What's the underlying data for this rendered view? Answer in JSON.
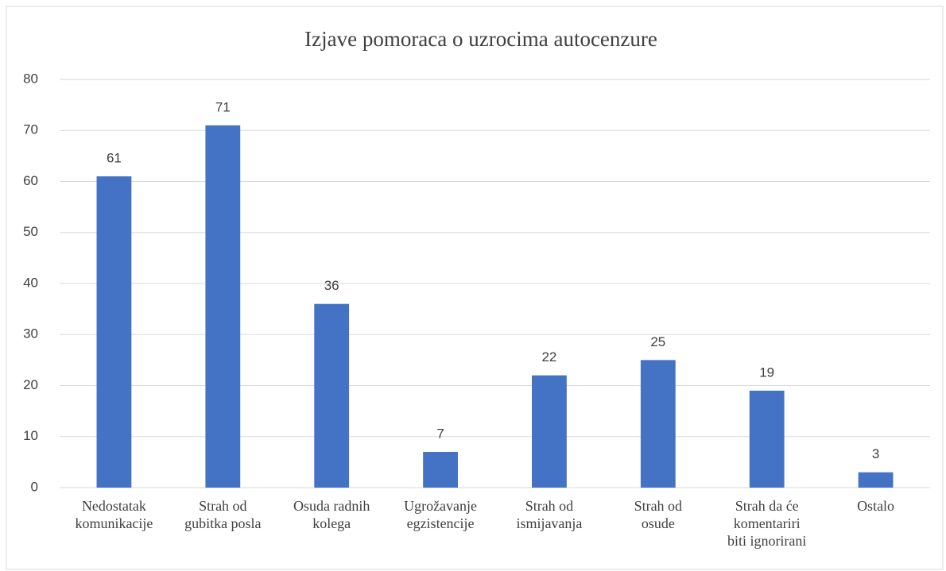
{
  "chart_data": {
    "type": "bar",
    "title": "Izjave pomoraca o uzrocima autocenzure",
    "categories": [
      "Nedostatak\nkomunikacije",
      "Strah od\ngubitka posla",
      "Osuda radnih\nkolega",
      "Ugrožavanje\negzistencije",
      "Strah od\nismijavanja",
      "Strah od\nosude",
      "Strah da će\nkomentariri\nbiti ignorirani",
      "Ostalo"
    ],
    "values": [
      61,
      71,
      36,
      7,
      22,
      25,
      19,
      3
    ],
    "color": "#4472c4",
    "ylim": [
      0,
      80
    ],
    "yticks": [
      0,
      10,
      20,
      30,
      40,
      50,
      60,
      70,
      80
    ],
    "grid": true
  }
}
